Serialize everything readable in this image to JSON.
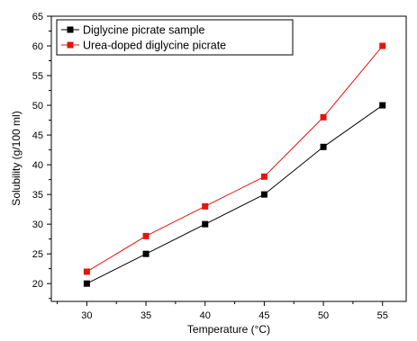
{
  "chart_data": {
    "type": "line",
    "xlabel": "Temperature (°C)",
    "ylabel": "Solubility (g/100 ml)",
    "xlim": [
      27,
      57
    ],
    "ylim": [
      17,
      65
    ],
    "xticks": [
      30,
      35,
      40,
      45,
      50,
      55
    ],
    "yticks": [
      20,
      25,
      30,
      35,
      40,
      45,
      50,
      55,
      60,
      65
    ],
    "x": [
      30,
      35,
      40,
      45,
      50,
      55
    ],
    "grid": false,
    "legend_position": "top-left",
    "series": [
      {
        "name": "Diglycine picrate sample",
        "values": [
          20,
          25,
          30,
          35,
          43,
          50
        ],
        "color": "#000000",
        "marker": "square"
      },
      {
        "name": "Urea-doped diglycine picrate",
        "values": [
          22,
          28,
          33,
          38,
          48,
          60
        ],
        "color": "#e8130f",
        "marker": "square"
      }
    ]
  }
}
